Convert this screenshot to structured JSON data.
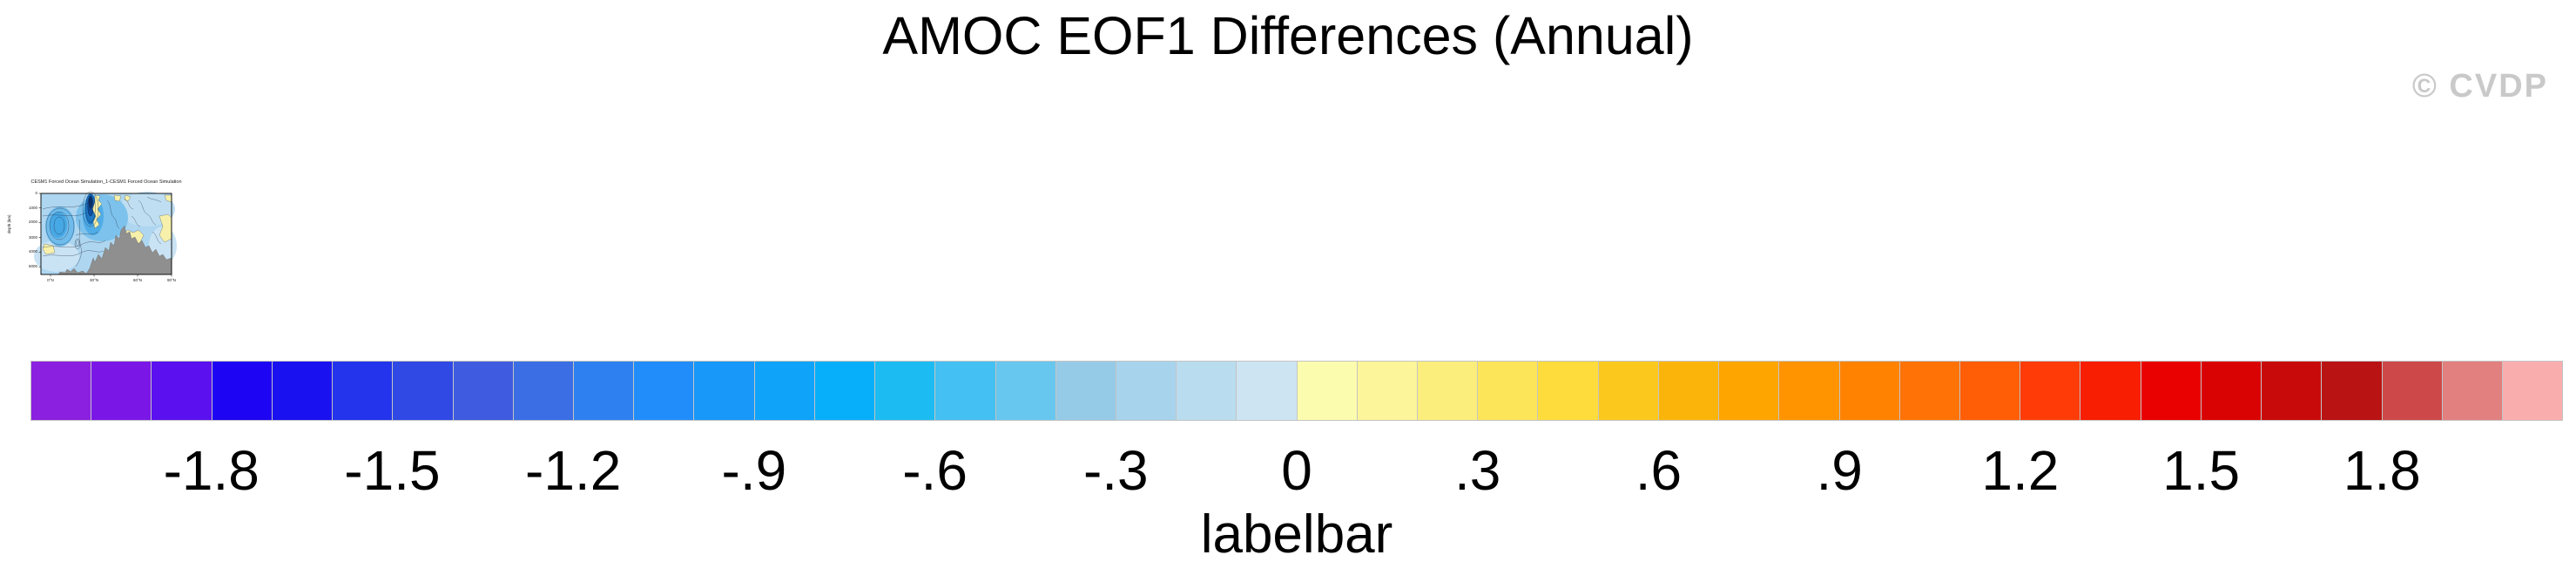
{
  "header": {
    "title": "AMOC EOF1 Differences (Annual)",
    "watermark": "© CVDP"
  },
  "chart_data": {
    "type": "heatmap",
    "title": "AMOC EOF1 Differences (Annual)",
    "subpanel_title": "CESM1 Forced Ocean Simulation_1-CESM1 Forced Ocean Simulation",
    "ylabel": "depth (km)",
    "y_tick_labels": [
      "0",
      "1000",
      "2000",
      "3000",
      "4000",
      "5000"
    ],
    "x_tick_labels": [
      "0°N",
      "30°N",
      "60°N",
      "90°N"
    ],
    "panel_description": "latitude-depth contour section of AMOC EOF1 difference; blue negative anomalies, yellow positive patches, gray bathymetry mask rising toward 60-90N",
    "colorbar": {
      "label": "labelbar",
      "tick_labels": [
        "-1.8",
        "-1.5",
        "-1.2",
        "-.9",
        "-.6",
        "-.3",
        "0",
        ".3",
        ".6",
        ".9",
        "1.2",
        "1.5",
        "1.8"
      ],
      "n_boxes": 42,
      "tick_step_boxes": 3,
      "first_tick_boundary_index": 3,
      "border_color": "#c4c4c4",
      "colors": [
        "#8B20E0",
        "#7A17E7",
        "#5A10EF",
        "#1D04F2",
        "#1A11F1",
        "#2334EC",
        "#3048E4",
        "#3F5CE0",
        "#3B6EE4",
        "#2E80F0",
        "#218DFA",
        "#1898F9",
        "#0FA3FA",
        "#07AFFB",
        "#1CBCF2",
        "#44C0F2",
        "#68C7EE",
        "#96CBE7",
        "#A8D3EC",
        "#B9DCEF",
        "#CDE5F3",
        "#FCFCAE",
        "#FCF59A",
        "#FBEE7D",
        "#FDE55A",
        "#FDDC3C",
        "#FBC81E",
        "#FBB50A",
        "#FFA500",
        "#FF9400",
        "#FF8300",
        "#FF7205",
        "#FF5E06",
        "#FF3C08",
        "#F81E02",
        "#E90000",
        "#DA0303",
        "#C90A0A",
        "#BA1313",
        "#CD4949",
        "#E27F7F",
        "#F9ADAD"
      ]
    }
  }
}
